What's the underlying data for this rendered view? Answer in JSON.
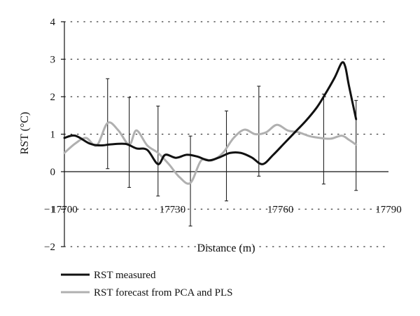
{
  "chart_data": {
    "type": "line",
    "xlabel": "Distance (m)",
    "ylabel": "RST (°C)",
    "xlim": [
      17700,
      17790
    ],
    "ylim": [
      -2,
      4
    ],
    "xticks": [
      "17700",
      "17730",
      "17760",
      "17790"
    ],
    "yticks": [
      "−2",
      "−1",
      "0",
      "1",
      "2",
      "3",
      "4"
    ],
    "grid": "horizontal dotted",
    "legend_position": "bottom-left",
    "colors": {
      "measured": "#111111",
      "forecast": "#b0b0b0",
      "errorbar": "#222222"
    },
    "series": [
      {
        "name": "RST measured",
        "x": [
          17700,
          17703,
          17707,
          17710,
          17713,
          17717,
          17720,
          17723,
          17726,
          17728,
          17731,
          17734,
          17737,
          17740,
          17743,
          17746,
          17749,
          17752,
          17755,
          17758,
          17761,
          17764,
          17767,
          17770,
          17772,
          17775,
          17777,
          17778,
          17779,
          17781
        ],
        "values": [
          0.9,
          0.96,
          0.75,
          0.7,
          0.73,
          0.74,
          0.62,
          0.58,
          0.2,
          0.45,
          0.37,
          0.45,
          0.4,
          0.3,
          0.38,
          0.5,
          0.5,
          0.38,
          0.2,
          0.45,
          0.75,
          1.05,
          1.35,
          1.7,
          2.0,
          2.5,
          2.9,
          2.8,
          2.3,
          1.4
        ]
      },
      {
        "name": "RST forecast from PCA and PLS",
        "x": [
          17700,
          17703,
          17706,
          17709,
          17712,
          17715,
          17718,
          17720,
          17723,
          17726,
          17729,
          17732,
          17735,
          17738,
          17741,
          17744,
          17747,
          17750,
          17753,
          17756,
          17759,
          17762,
          17765,
          17768,
          17771,
          17774,
          17777,
          17779,
          17781
        ],
        "values": [
          0.5,
          0.75,
          0.9,
          0.7,
          1.3,
          1.1,
          0.72,
          1.1,
          0.7,
          0.5,
          0.2,
          -0.15,
          -0.3,
          0.3,
          0.3,
          0.5,
          0.9,
          1.12,
          1.0,
          1.05,
          1.25,
          1.1,
          1.05,
          0.95,
          0.9,
          0.88,
          0.96,
          0.85,
          0.72
        ]
      }
    ],
    "error_bars": [
      {
        "x": 17712,
        "low": 0.08,
        "high": 2.48
      },
      {
        "x": 17718,
        "low": -0.42,
        "high": 1.98
      },
      {
        "x": 17726,
        "low": -0.65,
        "high": 1.75
      },
      {
        "x": 17735,
        "low": -1.45,
        "high": 0.95
      },
      {
        "x": 17745,
        "low": -0.78,
        "high": 1.62
      },
      {
        "x": 17754,
        "low": -0.12,
        "high": 2.28
      },
      {
        "x": 17772,
        "low": -0.33,
        "high": 2.07
      },
      {
        "x": 17781,
        "low": -0.5,
        "high": 1.9
      }
    ]
  }
}
